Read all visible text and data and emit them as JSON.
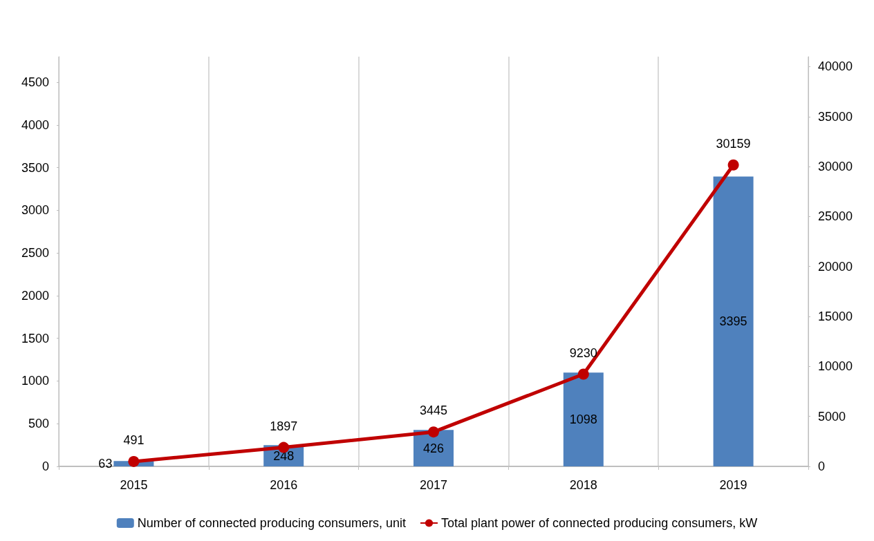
{
  "chart_data": {
    "type": "bar",
    "categories": [
      "2015",
      "2016",
      "2017",
      "2018",
      "2019"
    ],
    "series": [
      {
        "name": "Number of connected producing consumers, unit",
        "color": "#4f81bd",
        "values": [
          63,
          248,
          426,
          1098,
          3395
        ]
      },
      {
        "name": "Total plant power of connected producing consumers, kW",
        "type": "line",
        "axis": "y2",
        "color": "#c00000",
        "values": [
          491,
          1897,
          3445,
          9230,
          30159
        ]
      }
    ],
    "ylim": [
      0,
      4800
    ],
    "yticks": [
      0,
      500,
      1000,
      1500,
      2000,
      2500,
      3000,
      3500,
      4000,
      4500
    ],
    "y2lim": [
      0,
      41000
    ],
    "y2ticks": [
      0,
      5000,
      10000,
      15000,
      20000,
      25000,
      30000,
      35000,
      40000
    ],
    "data_labels": true,
    "grid": "x",
    "legend": "bottom",
    "marker": "circle",
    "line_style": "solid"
  }
}
